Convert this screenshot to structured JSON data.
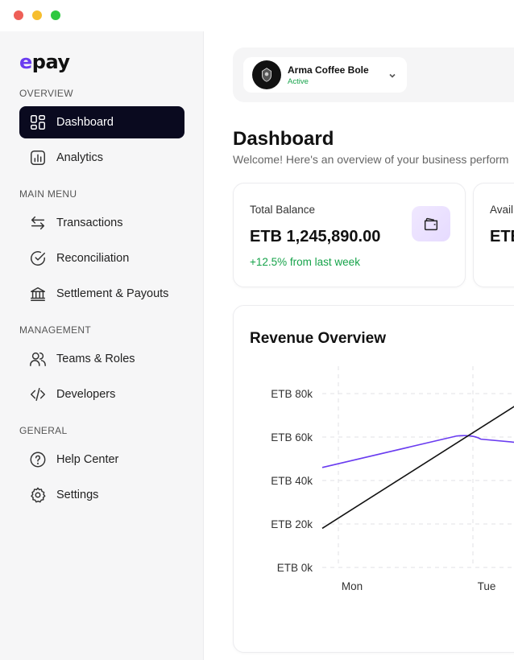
{
  "brand": {
    "logo_prefix": "e",
    "logo_rest": "pay"
  },
  "sidebar": {
    "sections": [
      {
        "label": "OVERVIEW"
      },
      {
        "label": "MAIN MENU"
      },
      {
        "label": "MANAGEMENT"
      },
      {
        "label": "GENERAL"
      }
    ],
    "items": [
      {
        "label": "Dashboard",
        "icon": "grid-icon",
        "active": true
      },
      {
        "label": "Analytics",
        "icon": "analytics-icon"
      },
      {
        "label": "Transactions",
        "icon": "transfer-arrows-icon"
      },
      {
        "label": "Reconciliation",
        "icon": "check-circle-icon"
      },
      {
        "label": "Settlement & Payouts",
        "icon": "bank-icon"
      },
      {
        "label": "Teams & Roles",
        "icon": "users-icon"
      },
      {
        "label": "Developers",
        "icon": "code-icon"
      },
      {
        "label": "Help Center",
        "icon": "help-circle-icon"
      },
      {
        "label": "Settings",
        "icon": "gear-icon"
      }
    ]
  },
  "account": {
    "name": "Arma Coffee Bole",
    "status": "Active"
  },
  "page": {
    "title": "Dashboard",
    "subtitle": "Welcome! Here's an overview of your business perform"
  },
  "stats": [
    {
      "label": "Total Balance",
      "value": "ETB 1,245,890.00",
      "change": "+12.5% from last week",
      "icon": "wallet-icon"
    },
    {
      "label": "Avail",
      "value": "ETE"
    }
  ],
  "colors": {
    "accent": "#6a3cf0",
    "positive": "#16a34a",
    "sidebar_active": "#0a0a1f"
  },
  "chart_data": {
    "type": "line",
    "title": "Revenue Overview",
    "categories": [
      "Mon",
      "Tue"
    ],
    "y_ticks": [
      "ETB 0k",
      "ETB 20k",
      "ETB 40k",
      "ETB 60k",
      "ETB 80k"
    ],
    "ylim": [
      0,
      80000
    ],
    "grid": true,
    "series": [
      {
        "color": "#6a3cf0",
        "values": [
          46000,
          60500
        ],
        "tail": 53000
      },
      {
        "color": "#111111",
        "values": [
          18000,
          59000
        ],
        "tail": 71000
      }
    ]
  }
}
